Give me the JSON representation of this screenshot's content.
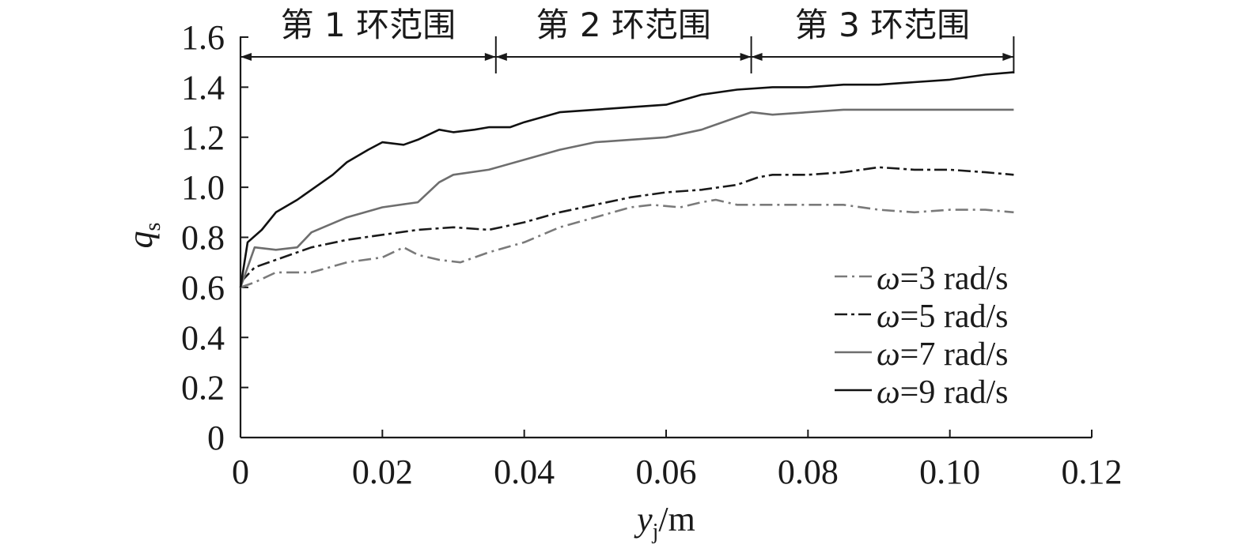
{
  "chart_data": {
    "type": "line",
    "xlabel": {
      "symbol": "y",
      "sub": "j",
      "unit": "/m"
    },
    "ylabel": {
      "symbol": "q",
      "sub": "s"
    },
    "xlim": [
      0,
      0.12
    ],
    "ylim": [
      0,
      1.6
    ],
    "xticks": [
      "0",
      "0.02",
      "0.04",
      "0.06",
      "0.08",
      "0.10",
      "0.12"
    ],
    "yticks": [
      "0",
      "0.2",
      "0.4",
      "0.6",
      "0.8",
      "1.0",
      "1.2",
      "1.4",
      "1.6"
    ],
    "xtick_values": [
      0,
      0.02,
      0.04,
      0.06,
      0.08,
      0.1,
      0.12
    ],
    "ytick_values": [
      0,
      0.2,
      0.4,
      0.6,
      0.8,
      1.0,
      1.2,
      1.4,
      1.6
    ],
    "grid": false,
    "legend_position": "lower-right",
    "ranges": [
      {
        "label": "第 1 环范围",
        "start": 0,
        "end": 0.036
      },
      {
        "label": "第 2 环范围",
        "start": 0.036,
        "end": 0.072
      },
      {
        "label": "第 3 环范围",
        "start": 0.072,
        "end": 0.109
      }
    ],
    "series": [
      {
        "name": "ω=3 rad/s",
        "symbol": "ω",
        "rest": "=3 rad/s",
        "color": "#7a7a7a",
        "dash": "16,6,3,6",
        "x": [
          0,
          0.002,
          0.005,
          0.01,
          0.015,
          0.02,
          0.023,
          0.025,
          0.028,
          0.031,
          0.035,
          0.04,
          0.045,
          0.05,
          0.055,
          0.058,
          0.062,
          0.065,
          0.067,
          0.07,
          0.075,
          0.08,
          0.085,
          0.09,
          0.095,
          0.1,
          0.105,
          0.109
        ],
        "y": [
          0.6,
          0.62,
          0.66,
          0.66,
          0.7,
          0.72,
          0.76,
          0.73,
          0.71,
          0.7,
          0.74,
          0.78,
          0.84,
          0.88,
          0.92,
          0.93,
          0.92,
          0.94,
          0.95,
          0.93,
          0.93,
          0.93,
          0.93,
          0.91,
          0.9,
          0.91,
          0.91,
          0.9
        ]
      },
      {
        "name": "ω=5 rad/s",
        "symbol": "ω",
        "rest": "=5 rad/s",
        "color": "#1a1a1a",
        "dash": "16,5,4,5",
        "x": [
          0,
          0.002,
          0.005,
          0.01,
          0.015,
          0.02,
          0.025,
          0.03,
          0.035,
          0.04,
          0.045,
          0.05,
          0.055,
          0.06,
          0.065,
          0.07,
          0.073,
          0.075,
          0.08,
          0.085,
          0.09,
          0.095,
          0.1,
          0.105,
          0.109
        ],
        "y": [
          0.62,
          0.68,
          0.71,
          0.76,
          0.79,
          0.81,
          0.83,
          0.84,
          0.83,
          0.86,
          0.9,
          0.93,
          0.96,
          0.98,
          0.99,
          1.01,
          1.04,
          1.05,
          1.05,
          1.06,
          1.08,
          1.07,
          1.07,
          1.06,
          1.05
        ]
      },
      {
        "name": "ω=7 rad/s",
        "symbol": "ω",
        "rest": "=7 rad/s",
        "color": "#6e6e6e",
        "dash": "",
        "x": [
          0,
          0.002,
          0.005,
          0.008,
          0.01,
          0.015,
          0.02,
          0.025,
          0.028,
          0.03,
          0.035,
          0.04,
          0.045,
          0.05,
          0.055,
          0.06,
          0.065,
          0.07,
          0.072,
          0.075,
          0.08,
          0.085,
          0.09,
          0.095,
          0.1,
          0.105,
          0.109
        ],
        "y": [
          0.6,
          0.76,
          0.75,
          0.76,
          0.82,
          0.88,
          0.92,
          0.94,
          1.02,
          1.05,
          1.07,
          1.11,
          1.15,
          1.18,
          1.19,
          1.2,
          1.23,
          1.28,
          1.3,
          1.29,
          1.3,
          1.31,
          1.31,
          1.31,
          1.31,
          1.31,
          1.31
        ]
      },
      {
        "name": "ω=9 rad/s",
        "symbol": "ω",
        "rest": "=9 rad/s",
        "color": "#111111",
        "dash": "",
        "x": [
          0,
          0.001,
          0.003,
          0.005,
          0.008,
          0.01,
          0.013,
          0.015,
          0.018,
          0.02,
          0.023,
          0.025,
          0.028,
          0.03,
          0.033,
          0.035,
          0.038,
          0.04,
          0.045,
          0.05,
          0.055,
          0.06,
          0.065,
          0.07,
          0.075,
          0.08,
          0.085,
          0.09,
          0.095,
          0.1,
          0.105,
          0.109
        ],
        "y": [
          0.6,
          0.78,
          0.83,
          0.9,
          0.95,
          0.99,
          1.05,
          1.1,
          1.15,
          1.18,
          1.17,
          1.19,
          1.23,
          1.22,
          1.23,
          1.24,
          1.24,
          1.26,
          1.3,
          1.31,
          1.32,
          1.33,
          1.37,
          1.39,
          1.4,
          1.4,
          1.41,
          1.41,
          1.42,
          1.43,
          1.45,
          1.46
        ]
      }
    ]
  }
}
